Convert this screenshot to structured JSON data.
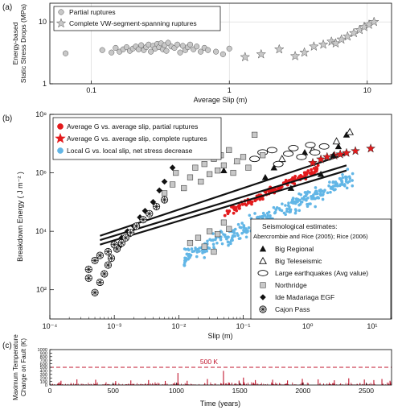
{
  "chart_data": [
    {
      "panel_label": "(a)",
      "type": "scatter",
      "xlabel": "Average Slip (m)",
      "ylabel": [
        "Energy-based",
        "Static Stress Drops (MPa)"
      ],
      "xscale": "log",
      "yscale": "log",
      "xlim": [
        0.05,
        15
      ],
      "ylim": [
        1,
        20
      ],
      "xticks": [
        {
          "v": 0.1,
          "t": "0.1"
        },
        {
          "v": 1,
          "t": "1"
        },
        {
          "v": 10,
          "t": "10"
        }
      ],
      "yticks": [
        {
          "v": 1,
          "t": "1"
        },
        {
          "v": 10,
          "t": "10"
        }
      ],
      "legend": {
        "position": "top-left",
        "entries": [
          {
            "name": "Partial ruptures",
            "marker": "circle"
          },
          {
            "name": "Complete VW-segment-spanning ruptures",
            "marker": "star"
          }
        ]
      },
      "series": [
        {
          "name": "Partial ruptures",
          "marker": "circle",
          "color": "#c8c8c8",
          "edge": "#555555",
          "points": [
            [
              0.065,
              3.1
            ],
            [
              0.12,
              3.5
            ],
            [
              0.14,
              3.2
            ],
            [
              0.15,
              3.8
            ],
            [
              0.16,
              3.3
            ],
            [
              0.17,
              3.6
            ],
            [
              0.18,
              3.9
            ],
            [
              0.19,
              3.4
            ],
            [
              0.2,
              3.7
            ],
            [
              0.21,
              4.0
            ],
            [
              0.22,
              3.6
            ],
            [
              0.23,
              4.2
            ],
            [
              0.24,
              3.5
            ],
            [
              0.25,
              3.9
            ],
            [
              0.26,
              4.3
            ],
            [
              0.27,
              3.3
            ],
            [
              0.28,
              4.1
            ],
            [
              0.29,
              3.7
            ],
            [
              0.3,
              4.4
            ],
            [
              0.31,
              3.9
            ],
            [
              0.32,
              4.5
            ],
            [
              0.33,
              3.6
            ],
            [
              0.34,
              4.2
            ],
            [
              0.35,
              3.4
            ],
            [
              0.36,
              4.6
            ],
            [
              0.38,
              4.0
            ],
            [
              0.4,
              3.8
            ],
            [
              0.42,
              4.3
            ],
            [
              0.44,
              3.2
            ],
            [
              0.46,
              4.1
            ],
            [
              0.48,
              3.5
            ],
            [
              0.5,
              3.9
            ],
            [
              0.52,
              4.3
            ],
            [
              0.55,
              3.6
            ],
            [
              0.58,
              4.0
            ],
            [
              0.62,
              3.3
            ],
            [
              0.66,
              3.8
            ],
            [
              0.7,
              3.5
            ],
            [
              0.8,
              3.3
            ],
            [
              0.9,
              3.0
            ],
            [
              1.0,
              3.7
            ]
          ]
        },
        {
          "name": "Complete VW-segment-spanning ruptures",
          "marker": "star",
          "color": "#c8c8c8",
          "edge": "#555555",
          "points": [
            [
              1.3,
              2.7
            ],
            [
              1.7,
              3.0
            ],
            [
              2.3,
              3.6
            ],
            [
              3.0,
              2.8
            ],
            [
              3.5,
              3.2
            ],
            [
              4.1,
              4.0
            ],
            [
              4.8,
              4.3
            ],
            [
              5.5,
              4.8
            ],
            [
              5.9,
              4.5
            ],
            [
              6.5,
              5.2
            ],
            [
              7.2,
              5.8
            ],
            [
              8.0,
              6.6
            ],
            [
              8.8,
              7.4
            ],
            [
              9.5,
              8.3
            ],
            [
              10.3,
              9.0
            ],
            [
              11.2,
              10.0
            ]
          ]
        }
      ]
    },
    {
      "panel_label": "(b)",
      "type": "scatter",
      "xlabel": "Slip (m)",
      "ylabel": "Breakdown Energy ( J m⁻² )",
      "xscale": "log",
      "yscale": "log",
      "xlim": [
        0.0001,
        20
      ],
      "ylim": [
        10,
        100000000
      ],
      "xticks": [
        {
          "v": 0.0001,
          "t": "10⁻⁴"
        },
        {
          "v": 0.001,
          "t": "10⁻³"
        },
        {
          "v": 0.01,
          "t": "10⁻²"
        },
        {
          "v": 0.1,
          "t": "10⁻¹"
        },
        {
          "v": 1,
          "t": "10⁰"
        },
        {
          "v": 10,
          "t": "10¹"
        }
      ],
      "yticks": [
        {
          "v": 100,
          "t": "10²"
        },
        {
          "v": 10000,
          "t": "10⁴"
        },
        {
          "v": 1000000,
          "t": "10⁶"
        },
        {
          "v": 100000000,
          "t": "10⁸"
        }
      ],
      "legend": {
        "position": "top-left",
        "entries": [
          {
            "name": "Average G vs. average slip, partial ruptures",
            "marker": "circle",
            "color": "#e31a1c"
          },
          {
            "name": "Average G vs. average slip, complete ruptures",
            "marker": "star",
            "color": "#e31a1c"
          },
          {
            "name": "Local G vs. local slip, net stress decrease",
            "marker": "circle",
            "color": "#62b6e6"
          }
        ]
      },
      "legend2": {
        "position": "bottom-right",
        "title": "Seismological estimates:",
        "subtitle": "Abercrombie and Rice (2005); Rice (2006)",
        "entries": [
          {
            "name": "Big Regional",
            "marker": "triangle-filled"
          },
          {
            "name": "Big Teleseismic",
            "marker": "triangle-open"
          },
          {
            "name": "Large earthquakes (Avg value)",
            "marker": "ellipse-open"
          },
          {
            "name": "Northridge",
            "marker": "square-gray"
          },
          {
            "name": "Ide Madariaga EGF",
            "marker": "diamond-filled"
          },
          {
            "name": "Cajon Pass",
            "marker": "asterisk-circle"
          }
        ]
      },
      "lines": [
        {
          "name": "",
          "color": "#111111",
          "points": [
            [
              0.0006,
              7000
            ],
            [
              4,
              4500000
            ]
          ]
        },
        {
          "name": "",
          "color": "#111111",
          "points": [
            [
              0.0006,
              5000
            ],
            [
              4,
              1800000
            ]
          ]
        },
        {
          "name": "",
          "color": "#111111",
          "points": [
            [
              0.0006,
              3500
            ],
            [
              4,
              1200000
            ]
          ]
        }
      ],
      "series": [
        {
          "name": "Local G vs. local slip, net stress decrease",
          "marker": "circle",
          "color": "#62b6e6",
          "cloud": {
            "x_range": [
              0.012,
              5
            ],
            "log_y_at_xmin": 3.1,
            "log_slope": 1.05,
            "log_spread": 0.55,
            "count": 320
          }
        },
        {
          "name": "Average G vs. average slip, partial ruptures",
          "marker": "circle",
          "color": "#e31a1c",
          "cloud": {
            "x_range": [
              0.05,
              1.5
            ],
            "log_y_at_xmin": 4.6,
            "log_slope": 1.05,
            "log_spread": 0.22,
            "count": 140
          }
        },
        {
          "name": "Average G vs. average slip, complete ruptures",
          "marker": "star",
          "color": "#e31a1c",
          "points": [
            [
              1.2,
              2200000
            ],
            [
              1.6,
              2900000
            ],
            [
              2.0,
              3500000
            ],
            [
              2.6,
              3900000
            ],
            [
              3.2,
              4300000
            ],
            [
              4.0,
              4800000
            ],
            [
              5.5,
              5600000
            ],
            [
              9.5,
              6800000
            ]
          ]
        },
        {
          "name": "Big Regional",
          "marker": "triangle-filled",
          "color": "#111111",
          "points": [
            [
              0.08,
              2500000
            ],
            [
              0.3,
              1500000
            ],
            [
              0.55,
              300000
            ],
            [
              0.9,
              5000000
            ],
            [
              1.6,
              900000
            ],
            [
              2.5,
              4000000
            ],
            [
              3.0,
              8000000
            ],
            [
              4.0,
              20000000
            ],
            [
              0.22,
              700000
            ],
            [
              0.05,
              1200000
            ]
          ]
        },
        {
          "name": "Big Teleseismic",
          "marker": "triangle-open",
          "color": "#111111",
          "points": [
            [
              0.4,
              3000000
            ],
            [
              1.2,
              6000000
            ],
            [
              2.8,
              12000000
            ],
            [
              4.5,
              25000000
            ]
          ]
        },
        {
          "name": "Large earthquakes (Avg value)",
          "marker": "ellipse-open",
          "color": "#111111",
          "points": [
            [
              0.15,
              3000000
            ],
            [
              0.2,
              5000000
            ],
            [
              0.28,
              6000000
            ],
            [
              0.35,
              2000000
            ],
            [
              0.5,
              4500000
            ],
            [
              0.6,
              7000000
            ],
            [
              0.8,
              3500000
            ],
            [
              1.1,
              9000000
            ],
            [
              1.3,
              5000000
            ],
            [
              1.8,
              8000000
            ]
          ]
        },
        {
          "name": "Northridge",
          "marker": "square-gray",
          "color": "#c8c8c8",
          "points": [
            [
              0.006,
              200000
            ],
            [
              0.008,
              400000
            ],
            [
              0.009,
              1000000
            ],
            [
              0.012,
              300000
            ],
            [
              0.015,
              700000
            ],
            [
              0.018,
              1500000
            ],
            [
              0.022,
              500000
            ],
            [
              0.025,
              2000000
            ],
            [
              0.03,
              900000
            ],
            [
              0.035,
              3000000
            ],
            [
              0.04,
              1200000
            ],
            [
              0.045,
              4000000
            ],
            [
              0.05,
              1800000
            ],
            [
              0.06,
              6000000
            ],
            [
              0.07,
              1000000
            ],
            [
              0.08,
              2500000
            ],
            [
              0.1,
              3500000
            ],
            [
              0.12,
              1500000
            ],
            [
              0.15,
              20000000
            ],
            [
              0.2,
              4000000
            ],
            [
              0.015,
              4000
            ],
            [
              0.02,
              6000
            ],
            [
              0.025,
              3000
            ],
            [
              0.03,
              10000
            ],
            [
              0.04,
              8000
            ],
            [
              0.05,
              20000
            ],
            [
              0.06,
              12000
            ],
            [
              0.035,
              2000
            ]
          ]
        },
        {
          "name": "Ide Madariaga EGF",
          "marker": "diamond-filled",
          "color": "#111111",
          "points": [
            [
              0.001,
              4000
            ],
            [
              0.0013,
              6000
            ],
            [
              0.0016,
              10000
            ],
            [
              0.002,
              15000
            ],
            [
              0.0025,
              30000
            ],
            [
              0.003,
              50000
            ],
            [
              0.004,
              100000
            ],
            [
              0.005,
              250000
            ],
            [
              0.006,
              500000
            ],
            [
              0.008,
              1500000
            ],
            [
              0.0012,
              3000
            ],
            [
              0.0018,
              8000
            ]
          ]
        },
        {
          "name": "Cajon Pass",
          "marker": "asterisk-circle",
          "color": "#111111",
          "points": [
            [
              0.0004,
              500
            ],
            [
              0.0005,
              1000
            ],
            [
              0.0006,
              1500
            ],
            [
              0.0004,
              250
            ],
            [
              0.0005,
              80
            ],
            [
              0.0006,
              180
            ],
            [
              0.0007,
              350
            ],
            [
              0.0008,
              700
            ],
            [
              0.0009,
              1200
            ],
            [
              0.0011,
              2500
            ],
            [
              0.0013,
              4000
            ],
            [
              0.0015,
              6000
            ],
            [
              0.0018,
              9000
            ],
            [
              0.0022,
              15000
            ],
            [
              0.0028,
              25000
            ],
            [
              0.0035,
              40000
            ],
            [
              0.0045,
              70000
            ],
            [
              0.006,
              120000
            ],
            [
              0.0008,
              2000
            ],
            [
              0.001,
              3500
            ]
          ]
        }
      ]
    },
    {
      "panel_label": "(c)",
      "type": "bar",
      "xlabel": "Time (years)",
      "ylabel": [
        "Maximum Temperature",
        "Change on Fault (K)"
      ],
      "xlim": [
        0,
        2700
      ],
      "ylim": [
        0,
        1000
      ],
      "xticks": [
        {
          "v": 0,
          "t": "0"
        },
        {
          "v": 500,
          "t": "500"
        },
        {
          "v": 1000,
          "t": "1000"
        },
        {
          "v": 1500,
          "t": "1500"
        },
        {
          "v": 2000,
          "t": "2000"
        },
        {
          "v": 2500,
          "t": "2500"
        }
      ],
      "yticks": [
        {
          "v": 0,
          "t": "0"
        },
        {
          "v": 100,
          "t": "100"
        },
        {
          "v": 200,
          "t": "200"
        },
        {
          "v": 300,
          "t": "300"
        },
        {
          "v": 400,
          "t": "400"
        },
        {
          "v": 500,
          "t": "500"
        },
        {
          "v": 600,
          "t": "600"
        },
        {
          "v": 700,
          "t": "700"
        },
        {
          "v": 800,
          "t": "800"
        },
        {
          "v": 900,
          "t": "900"
        },
        {
          "v": 1000,
          "t": "1000"
        }
      ],
      "color": "#c0142c",
      "threshold": {
        "value": 500,
        "label": "500 K",
        "style": "dashed",
        "color": "#c0142c"
      },
      "events": {
        "count": 300,
        "typical_range": [
          15,
          90
        ]
      },
      "large_events": [
        [
          88,
          120
        ],
        [
          214,
          160
        ],
        [
          362,
          150
        ],
        [
          520,
          110
        ],
        [
          640,
          130
        ],
        [
          780,
          140
        ],
        [
          912,
          115
        ],
        [
          1012,
          340
        ],
        [
          1085,
          120
        ],
        [
          1245,
          170
        ],
        [
          1372,
          400
        ],
        [
          1495,
          125
        ],
        [
          1530,
          210
        ],
        [
          1624,
          140
        ],
        [
          1760,
          150
        ],
        [
          1878,
          130
        ],
        [
          1995,
          175
        ],
        [
          2120,
          160
        ],
        [
          2248,
          135
        ],
        [
          2362,
          190
        ],
        [
          2485,
          155
        ],
        [
          2560,
          140
        ],
        [
          2624,
          170
        ],
        [
          2688,
          120
        ]
      ]
    }
  ]
}
